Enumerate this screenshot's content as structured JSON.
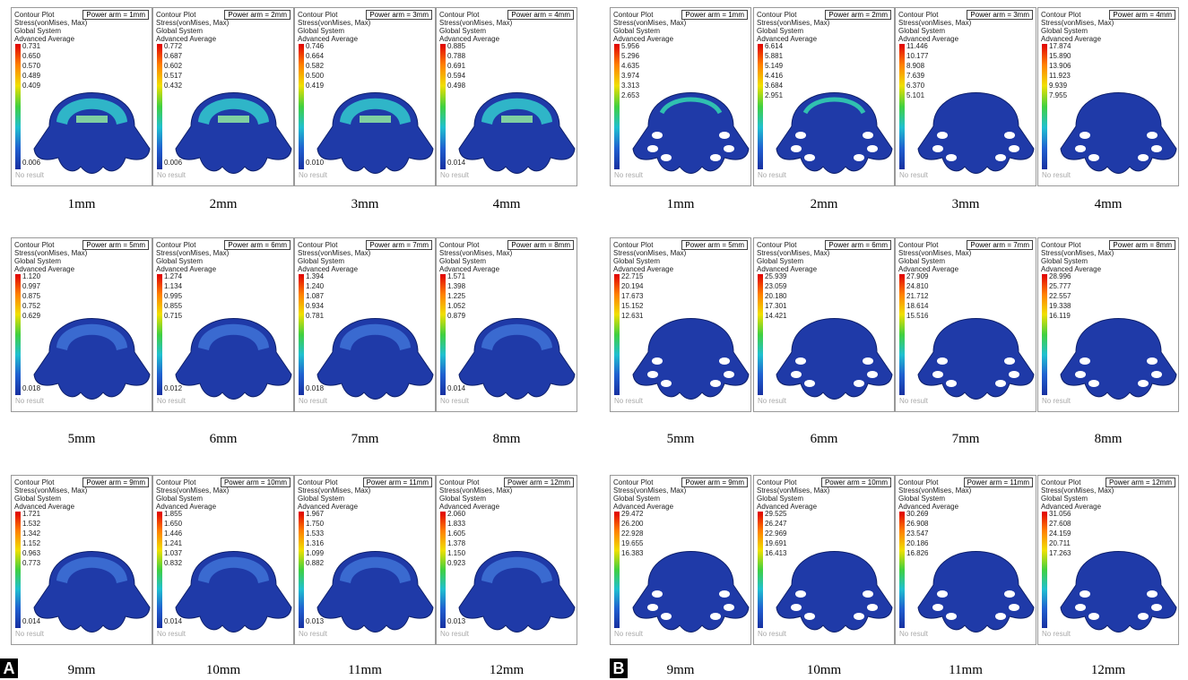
{
  "common": {
    "plot": "Contour Plot",
    "result": "Stress(vonMises, Max)",
    "system": "Global System",
    "averaging": "Advanced Average",
    "no_result": "No result"
  },
  "parts": [
    {
      "tag": "A",
      "panels": [
        {
          "power": "Power arm = 1mm",
          "legend": [
            "0.731",
            "0.650",
            "0.570",
            "0.489",
            "0.409"
          ],
          "min": "0.006",
          "caption": "1mm"
        },
        {
          "power": "Power arm = 2mm",
          "legend": [
            "0.772",
            "0.687",
            "0.602",
            "0.517",
            "0.432"
          ],
          "min": "0.006",
          "caption": "2mm"
        },
        {
          "power": "Power arm = 3mm",
          "legend": [
            "0.746",
            "0.664",
            "0.582",
            "0.500",
            "0.419"
          ],
          "min": "0.010",
          "caption": "3mm"
        },
        {
          "power": "Power arm = 4mm",
          "legend": [
            "0.885",
            "0.788",
            "0.691",
            "0.594",
            "0.498"
          ],
          "min": "0.014",
          "caption": "4mm"
        },
        {
          "power": "Power arm = 5mm",
          "legend": [
            "1.120",
            "0.997",
            "0.875",
            "0.752",
            "0.629"
          ],
          "min": "0.018",
          "caption": "5mm"
        },
        {
          "power": "Power arm = 6mm",
          "legend": [
            "1.274",
            "1.134",
            "0.995",
            "0.855",
            "0.715"
          ],
          "min": "0.012",
          "caption": "6mm"
        },
        {
          "power": "Power arm = 7mm",
          "legend": [
            "1.394",
            "1.240",
            "1.087",
            "0.934",
            "0.781"
          ],
          "min": "0.018",
          "caption": "7mm"
        },
        {
          "power": "Power arm = 8mm",
          "legend": [
            "1.571",
            "1.398",
            "1.225",
            "1.052",
            "0.879"
          ],
          "min": "0.014",
          "caption": "8mm"
        },
        {
          "power": "Power arm = 9mm",
          "legend": [
            "1.721",
            "1.532",
            "1.342",
            "1.152",
            "0.963",
            "0.773"
          ],
          "min": "0.014",
          "caption": "9mm"
        },
        {
          "power": "Power arm = 10mm",
          "legend": [
            "1.855",
            "1.650",
            "1.446",
            "1.241",
            "1.037",
            "0.832"
          ],
          "min": "0.014",
          "caption": "10mm"
        },
        {
          "power": "Power arm = 11mm",
          "legend": [
            "1.967",
            "1.750",
            "1.533",
            "1.316",
            "1.099",
            "0.882"
          ],
          "min": "0.013",
          "caption": "11mm"
        },
        {
          "power": "Power arm = 12mm",
          "legend": [
            "2.060",
            "1.833",
            "1.605",
            "1.378",
            "1.150",
            "0.923"
          ],
          "min": "0.013",
          "caption": "12mm"
        }
      ]
    },
    {
      "tag": "B",
      "panels": [
        {
          "power": "Power arm = 1mm",
          "legend": [
            "5.956",
            "5.296",
            "4.635",
            "3.974",
            "3.313",
            "2.653"
          ],
          "caption": "1mm"
        },
        {
          "power": "Power arm = 2mm",
          "legend": [
            "6.614",
            "5.881",
            "5.149",
            "4.416",
            "3.684",
            "2.951"
          ],
          "caption": "2mm"
        },
        {
          "power": "Power arm = 3mm",
          "legend": [
            "11.446",
            "10.177",
            "8.908",
            "7.639",
            "6.370",
            "5.101"
          ],
          "caption": "3mm"
        },
        {
          "power": "Power arm = 4mm",
          "legend": [
            "17.874",
            "15.890",
            "13.906",
            "11.923",
            "9.939",
            "7.955"
          ],
          "caption": "4mm"
        },
        {
          "power": "Power arm = 5mm",
          "legend": [
            "22.715",
            "20.194",
            "17.673",
            "15.152",
            "12.631"
          ],
          "caption": "5mm"
        },
        {
          "power": "Power arm = 6mm",
          "legend": [
            "25.939",
            "23.059",
            "20.180",
            "17.301",
            "14.421"
          ],
          "caption": "6mm"
        },
        {
          "power": "Power arm = 7mm",
          "legend": [
            "27.909",
            "24.810",
            "21.712",
            "18.614",
            "15.516"
          ],
          "caption": "7mm"
        },
        {
          "power": "Power arm = 8mm",
          "legend": [
            "28.996",
            "25.777",
            "22.557",
            "19.338",
            "16.119"
          ],
          "caption": "8mm"
        },
        {
          "power": "Power arm = 9mm",
          "legend": [
            "29.472",
            "26.200",
            "22.928",
            "19.655",
            "16.383"
          ],
          "caption": "9mm"
        },
        {
          "power": "Power arm = 10mm",
          "legend": [
            "29.525",
            "26.247",
            "22.969",
            "19.691",
            "16.413"
          ],
          "caption": "10mm"
        },
        {
          "power": "Power arm = 11mm",
          "legend": [
            "30.269",
            "26.908",
            "23.547",
            "20.186",
            "16.826"
          ],
          "caption": "11mm"
        },
        {
          "power": "Power arm = 12mm",
          "legend": [
            "31.056",
            "27.608",
            "24.159",
            "20.711",
            "17.263"
          ],
          "caption": "12mm"
        }
      ]
    }
  ]
}
